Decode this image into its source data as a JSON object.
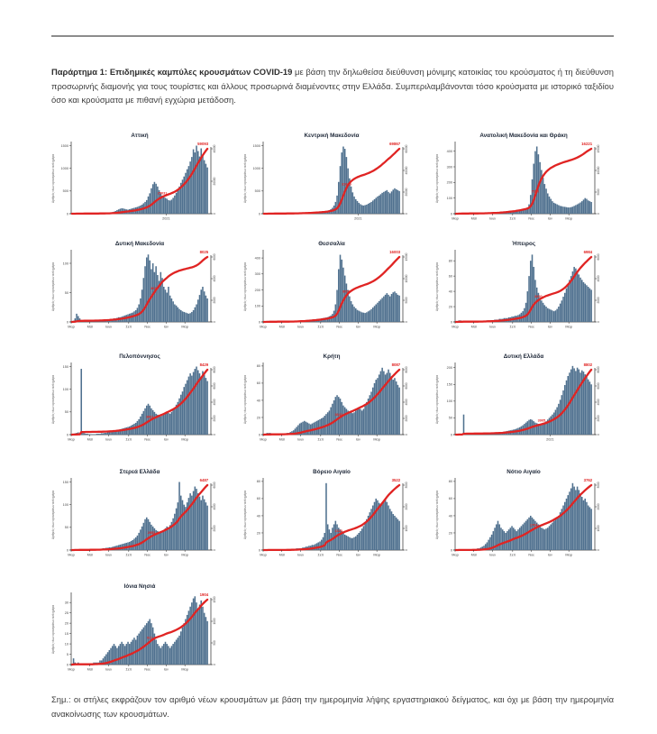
{
  "page": {
    "background": "#ffffff",
    "rule_color": "#8c8c8c"
  },
  "appendix": {
    "label_bold": "Παράρτημα 1:",
    "title_bold": " Επιδημικές καμπύλες κρουσμάτων COVID-19",
    "body": " με βάση την δηλωθείσα διεύθυνση μόνιμης κατοικίας του κρούσματος ή τη διεύθυνση προσωρινής διαμονής για τους τουρίστες και άλλους προσωρινά διαμένοντες στην Ελλάδα. Συμπεριλαμβάνονται τόσο κρούσματα με ιστορικό ταξιδίου όσο και κρούσματα με πιθανή εγχώρια μετάδοση."
  },
  "note": {
    "label": "Σημ.:",
    "text": " οι στήλες εκφράζουν τον αριθμό νέων κρουσμάτων με βάση την ημερομηνία λήψης εργαστηριακού δείγματος, και όχι με βάση την ημερομηνία ανακοίνωσης των κρουσμάτων."
  },
  "colors": {
    "bar": "#50718f",
    "line": "#e02423",
    "title": "#202a3a",
    "axis": "#2b2b2b",
    "tick_text": "#444444",
    "ylabel_text": "#555555"
  },
  "ylabel": "Αριθμός νέων κρουσμάτων ανά ημέρα",
  "month_labels": [
    "Μαρ",
    "Μαϊ",
    "Ιουλ",
    "Σεπ",
    "Νοε",
    "Ιαν",
    "Μαρ"
  ],
  "month_fracs": [
    0,
    0.136,
    0.273,
    0.42,
    0.557,
    0.693,
    0.83
  ],
  "year_label": "2021",
  "year_frac": 0.693,
  "chart_data": [
    {
      "type": "bar",
      "title": "Αττική",
      "total_label": "59093",
      "mid_label": "25031",
      "mid_frac": 0.66,
      "ymax": 1550,
      "left_ticks": [
        0,
        500,
        1000,
        1500
      ],
      "right_ticks": [
        "0",
        "20000",
        "40000"
      ],
      "x_mode": "year",
      "bars": [
        2,
        5,
        9,
        12,
        15,
        11,
        8,
        7,
        6,
        5,
        4,
        4,
        4,
        3,
        3,
        4,
        5,
        6,
        8,
        10,
        12,
        14,
        15,
        16,
        20,
        26,
        34,
        45,
        60,
        80,
        95,
        110,
        120,
        115,
        105,
        95,
        90,
        100,
        110,
        120,
        130,
        140,
        150,
        165,
        180,
        200,
        230,
        260,
        300,
        380,
        450,
        560,
        650,
        700,
        660,
        600,
        520,
        450,
        400,
        370,
        350,
        330,
        300,
        290,
        310,
        350,
        400,
        460,
        530,
        600,
        680,
        750,
        820,
        900,
        980,
        1050,
        1150,
        1250,
        1420,
        1350,
        1500,
        1380,
        1260,
        1440,
        1300,
        1180,
        1100,
        1020
      ]
    },
    {
      "type": "bar",
      "title": "Κεντρική Μακεδονία",
      "total_label": "69867",
      "mid_label": "31005",
      "mid_frac": 0.6,
      "ymax": 1550,
      "left_ticks": [
        0,
        500,
        1000,
        1500
      ],
      "right_ticks": [
        "0",
        "20000",
        "40000",
        "60000"
      ],
      "x_mode": "year",
      "bars": [
        3,
        5,
        8,
        10,
        9,
        7,
        6,
        5,
        4,
        4,
        3,
        3,
        3,
        3,
        4,
        4,
        5,
        6,
        7,
        8,
        9,
        10,
        11,
        12,
        14,
        16,
        18,
        20,
        22,
        25,
        28,
        30,
        32,
        34,
        36,
        38,
        40,
        45,
        50,
        55,
        60,
        70,
        80,
        100,
        130,
        180,
        260,
        400,
        700,
        1050,
        1350,
        1480,
        1430,
        1250,
        1000,
        780,
        600,
        470,
        380,
        320,
        280,
        240,
        210,
        190,
        180,
        190,
        200,
        220,
        240,
        260,
        290,
        320,
        350,
        380,
        400,
        430,
        460,
        480,
        500,
        520,
        480,
        450,
        490,
        530,
        560,
        540,
        520,
        500
      ]
    },
    {
      "type": "bar",
      "title": "Ανατολική Μακεδονία και Θράκη",
      "total_label": "16221",
      "mid_label": "7240",
      "mid_frac": 0.58,
      "ymax": 450,
      "left_ticks": [
        0,
        100,
        200,
        300,
        400
      ],
      "right_ticks": [
        "0",
        "5000",
        "10000",
        "15000"
      ],
      "x_mode": "months",
      "bars": [
        1,
        2,
        3,
        4,
        3,
        2,
        2,
        1,
        1,
        1,
        1,
        1,
        1,
        1,
        1,
        2,
        2,
        2,
        3,
        3,
        3,
        4,
        4,
        5,
        5,
        6,
        7,
        8,
        9,
        10,
        11,
        12,
        12,
        13,
        14,
        15,
        16,
        17,
        18,
        20,
        22,
        24,
        26,
        28,
        30,
        34,
        40,
        60,
        120,
        220,
        320,
        400,
        430,
        380,
        330,
        280,
        230,
        190,
        160,
        130,
        110,
        95,
        80,
        70,
        65,
        60,
        55,
        50,
        48,
        45,
        44,
        42,
        40,
        40,
        42,
        45,
        50,
        55,
        60,
        66,
        72,
        80,
        90,
        100,
        95,
        85,
        80,
        75
      ]
    },
    {
      "type": "bar",
      "title": "Δυτική Μακεδονία",
      "total_label": "8025",
      "mid_label": "3612",
      "mid_frac": 0.6,
      "ymax": 120,
      "left_ticks": [
        0,
        50,
        100
      ],
      "right_ticks": [
        "0",
        "2000",
        "4000",
        "6000"
      ],
      "x_mode": "months",
      "bars": [
        1,
        2,
        6,
        14,
        10,
        6,
        3,
        2,
        1,
        1,
        1,
        1,
        1,
        1,
        1,
        1,
        1,
        2,
        2,
        2,
        3,
        3,
        3,
        4,
        4,
        5,
        5,
        6,
        6,
        7,
        8,
        8,
        9,
        10,
        11,
        12,
        13,
        14,
        15,
        16,
        18,
        20,
        24,
        30,
        40,
        55,
        75,
        95,
        110,
        115,
        105,
        90,
        100,
        85,
        95,
        80,
        70,
        85,
        75,
        60,
        55,
        50,
        60,
        45,
        40,
        35,
        30,
        28,
        25,
        22,
        20,
        18,
        17,
        16,
        15,
        14,
        15,
        17,
        20,
        25,
        30,
        38,
        46,
        55,
        60,
        52,
        45,
        40
      ]
    },
    {
      "type": "bar",
      "title": "Θεσσαλία",
      "total_label": "16003",
      "mid_label": "8051",
      "mid_frac": 0.6,
      "ymax": 440,
      "left_ticks": [
        0,
        100,
        200,
        300,
        400
      ],
      "right_ticks": [
        "0",
        "5000",
        "10000",
        "15000"
      ],
      "x_mode": "months",
      "bars": [
        1,
        2,
        4,
        5,
        4,
        3,
        2,
        2,
        1,
        1,
        1,
        1,
        1,
        1,
        1,
        2,
        2,
        3,
        3,
        4,
        4,
        5,
        6,
        7,
        8,
        9,
        10,
        11,
        12,
        13,
        14,
        15,
        16,
        17,
        18,
        19,
        20,
        22,
        24,
        26,
        28,
        30,
        35,
        40,
        50,
        70,
        110,
        200,
        330,
        420,
        390,
        340,
        290,
        240,
        200,
        160,
        130,
        110,
        95,
        85,
        75,
        70,
        65,
        60,
        58,
        56,
        60,
        66,
        72,
        80,
        90,
        100,
        110,
        120,
        130,
        140,
        150,
        160,
        170,
        180,
        170,
        160,
        175,
        185,
        190,
        180,
        170,
        165
      ]
    },
    {
      "type": "bar",
      "title": "Ήπειρος",
      "total_label": "6984",
      "mid_label": "3490",
      "mid_frac": 0.6,
      "ymax": 92,
      "left_ticks": [
        0,
        20,
        40,
        60,
        80
      ],
      "right_ticks": [
        "0",
        "2000",
        "4000",
        "6000"
      ],
      "x_mode": "months",
      "bars": [
        0,
        1,
        2,
        2,
        1,
        1,
        1,
        0,
        0,
        0,
        0,
        0,
        0,
        0,
        1,
        1,
        1,
        1,
        1,
        1,
        2,
        2,
        2,
        2,
        2,
        3,
        3,
        3,
        4,
        4,
        4,
        5,
        5,
        5,
        6,
        6,
        7,
        7,
        8,
        8,
        9,
        10,
        12,
        14,
        18,
        25,
        40,
        60,
        80,
        88,
        72,
        55,
        45,
        38,
        32,
        28,
        25,
        22,
        20,
        18,
        17,
        16,
        15,
        14,
        15,
        17,
        20,
        24,
        28,
        33,
        38,
        44,
        50,
        55,
        60,
        66,
        72,
        70,
        66,
        62,
        58,
        55,
        52,
        50,
        48,
        46,
        44,
        42
      ]
    },
    {
      "type": "bar",
      "title": "Πελοπόννησος",
      "total_label": "8429",
      "mid_label": "3861",
      "mid_frac": 0.57,
      "ymax": 155,
      "left_ticks": [
        0,
        50,
        100,
        150
      ],
      "right_ticks": [
        "0",
        "2000",
        "4000",
        "6000",
        "8000"
      ],
      "x_mode": "months",
      "bars": [
        1,
        2,
        3,
        4,
        5,
        3,
        145,
        4,
        3,
        2,
        2,
        1,
        1,
        1,
        1,
        1,
        2,
        2,
        2,
        3,
        3,
        4,
        4,
        5,
        5,
        6,
        7,
        8,
        9,
        10,
        11,
        12,
        13,
        14,
        15,
        16,
        17,
        18,
        20,
        22,
        24,
        26,
        30,
        34,
        40,
        46,
        52,
        58,
        64,
        68,
        64,
        58,
        54,
        50,
        46,
        44,
        42,
        40,
        42,
        44,
        48,
        50,
        48,
        46,
        50,
        55,
        60,
        66,
        72,
        80,
        88,
        95,
        105,
        112,
        120,
        128,
        135,
        130,
        138,
        145,
        150,
        142,
        135,
        128,
        140,
        132,
        125,
        118
      ]
    },
    {
      "type": "bar",
      "title": "Κρήτη",
      "total_label": "8087",
      "mid_label": "3642",
      "mid_frac": 0.55,
      "ymax": 82,
      "left_ticks": [
        0,
        20,
        40,
        60,
        80
      ],
      "right_ticks": [
        "0",
        "2000",
        "4000",
        "6000",
        "8000"
      ],
      "x_mode": "months",
      "bars": [
        1,
        1,
        2,
        2,
        2,
        1,
        1,
        1,
        1,
        0,
        0,
        1,
        1,
        1,
        1,
        2,
        2,
        3,
        4,
        5,
        7,
        9,
        11,
        13,
        14,
        15,
        16,
        15,
        14,
        13,
        12,
        13,
        14,
        15,
        16,
        17,
        18,
        19,
        20,
        22,
        24,
        26,
        28,
        32,
        36,
        40,
        44,
        46,
        44,
        42,
        38,
        34,
        32,
        30,
        28,
        27,
        26,
        25,
        26,
        28,
        30,
        32,
        30,
        28,
        30,
        34,
        38,
        42,
        46,
        50,
        55,
        60,
        64,
        66,
        70,
        74,
        78,
        74,
        70,
        72,
        76,
        72,
        68,
        64,
        66,
        62,
        58,
        55
      ]
    },
    {
      "type": "bar",
      "title": "Δυτική Ελλάδα",
      "total_label": "8802",
      "mid_label": "3905",
      "mid_frac": 0.62,
      "ymax": 210,
      "left_ticks": [
        0,
        50,
        100,
        150,
        200
      ],
      "right_ticks": [
        "0",
        "2000",
        "4000",
        "6000",
        "8000"
      ],
      "x_mode": "year",
      "bars": [
        1,
        2,
        3,
        2,
        2,
        60,
        3,
        2,
        2,
        1,
        1,
        1,
        1,
        1,
        1,
        1,
        1,
        1,
        2,
        2,
        2,
        3,
        3,
        4,
        4,
        5,
        5,
        6,
        6,
        7,
        8,
        9,
        10,
        11,
        12,
        13,
        14,
        15,
        16,
        18,
        20,
        22,
        25,
        28,
        32,
        36,
        40,
        44,
        46,
        44,
        40,
        36,
        34,
        32,
        30,
        32,
        34,
        36,
        40,
        45,
        50,
        55,
        60,
        66,
        74,
        82,
        92,
        104,
        118,
        132,
        148,
        162,
        175,
        185,
        195,
        205,
        198,
        190,
        200,
        195,
        185,
        192,
        188,
        180,
        172,
        165,
        158,
        150
      ]
    },
    {
      "type": "bar",
      "title": "Στερεά Ελλάδα",
      "total_label": "6487",
      "mid_label": "2953",
      "mid_frac": 0.58,
      "ymax": 155,
      "left_ticks": [
        0,
        50,
        100,
        150
      ],
      "right_ticks": [
        "0",
        "2000",
        "4000",
        "6000"
      ],
      "x_mode": "months",
      "bars": [
        1,
        1,
        2,
        2,
        2,
        1,
        1,
        1,
        1,
        1,
        0,
        1,
        1,
        1,
        1,
        1,
        2,
        2,
        3,
        3,
        4,
        4,
        5,
        5,
        6,
        6,
        7,
        8,
        9,
        10,
        11,
        12,
        13,
        14,
        15,
        16,
        17,
        18,
        20,
        22,
        25,
        28,
        32,
        38,
        45,
        52,
        60,
        68,
        72,
        68,
        62,
        56,
        52,
        48,
        44,
        42,
        40,
        38,
        40,
        44,
        48,
        52,
        50,
        55,
        62,
        70,
        80,
        92,
        105,
        150,
        120,
        110,
        100,
        95,
        105,
        115,
        125,
        120,
        130,
        140,
        135,
        125,
        118,
        110,
        120,
        112,
        105,
        98
      ]
    },
    {
      "type": "bar",
      "title": "Βόρειο Αιγαίο",
      "total_label": "3522",
      "mid_label": "1620",
      "mid_frac": 0.55,
      "ymax": 82,
      "left_ticks": [
        0,
        20,
        40,
        60,
        80
      ],
      "right_ticks": [
        "0",
        "1000",
        "2000",
        "3000"
      ],
      "x_mode": "months",
      "bars": [
        0,
        0,
        1,
        1,
        1,
        0,
        0,
        0,
        0,
        0,
        0,
        0,
        0,
        0,
        0,
        1,
        1,
        1,
        1,
        1,
        1,
        2,
        2,
        2,
        2,
        3,
        3,
        4,
        4,
        5,
        5,
        6,
        6,
        7,
        8,
        9,
        10,
        12,
        15,
        20,
        78,
        30,
        24,
        20,
        26,
        30,
        34,
        30,
        26,
        24,
        22,
        20,
        18,
        17,
        16,
        15,
        14,
        14,
        15,
        16,
        18,
        20,
        22,
        25,
        28,
        32,
        36,
        40,
        44,
        48,
        52,
        56,
        60,
        58,
        55,
        52,
        55,
        58,
        60,
        56,
        52,
        48,
        45,
        42,
        40,
        38,
        36,
        34
      ]
    },
    {
      "type": "bar",
      "title": "Νότιο Αιγαίο",
      "total_label": "3762",
      "mid_label": "1704",
      "mid_frac": 0.57,
      "ymax": 82,
      "left_ticks": [
        0,
        20,
        40,
        60,
        80
      ],
      "right_ticks": [
        "0",
        "1000",
        "2000",
        "3000"
      ],
      "x_mode": "months",
      "bars": [
        0,
        1,
        1,
        1,
        1,
        0,
        0,
        0,
        0,
        0,
        1,
        1,
        1,
        1,
        2,
        2,
        3,
        4,
        5,
        7,
        9,
        12,
        15,
        18,
        22,
        26,
        30,
        34,
        30,
        26,
        24,
        22,
        20,
        22,
        24,
        26,
        28,
        26,
        24,
        22,
        24,
        26,
        28,
        30,
        32,
        34,
        36,
        38,
        40,
        38,
        36,
        34,
        32,
        30,
        28,
        26,
        25,
        24,
        25,
        26,
        28,
        30,
        32,
        34,
        36,
        38,
        40,
        44,
        48,
        52,
        56,
        60,
        64,
        68,
        72,
        78,
        74,
        70,
        74,
        70,
        66,
        62,
        58,
        60,
        56,
        52,
        50,
        48
      ]
    },
    {
      "type": "bar",
      "title": "Ιόνια Νησιά",
      "total_label": "1904",
      "mid_label": "921",
      "mid_frac": 0.57,
      "ymax": 34,
      "left_ticks": [
        0,
        5,
        10,
        15,
        20,
        25,
        30
      ],
      "right_ticks": [
        "0",
        "500",
        "1000",
        "1500"
      ],
      "x_mode": "months",
      "bars": [
        0,
        3,
        1,
        0,
        1,
        0,
        0,
        0,
        0,
        0,
        0,
        0,
        0,
        0,
        1,
        1,
        1,
        1,
        2,
        2,
        3,
        4,
        5,
        6,
        7,
        8,
        9,
        10,
        9,
        8,
        9,
        10,
        11,
        10,
        9,
        10,
        11,
        10,
        11,
        12,
        13,
        12,
        14,
        15,
        16,
        17,
        18,
        19,
        20,
        21,
        22,
        20,
        18,
        15,
        12,
        10,
        9,
        8,
        9,
        10,
        11,
        10,
        9,
        8,
        9,
        10,
        11,
        12,
        13,
        14,
        16,
        18,
        20,
        22,
        24,
        26,
        28,
        30,
        32,
        33,
        30,
        27,
        29,
        31,
        28,
        25,
        23,
        21
      ]
    }
  ]
}
